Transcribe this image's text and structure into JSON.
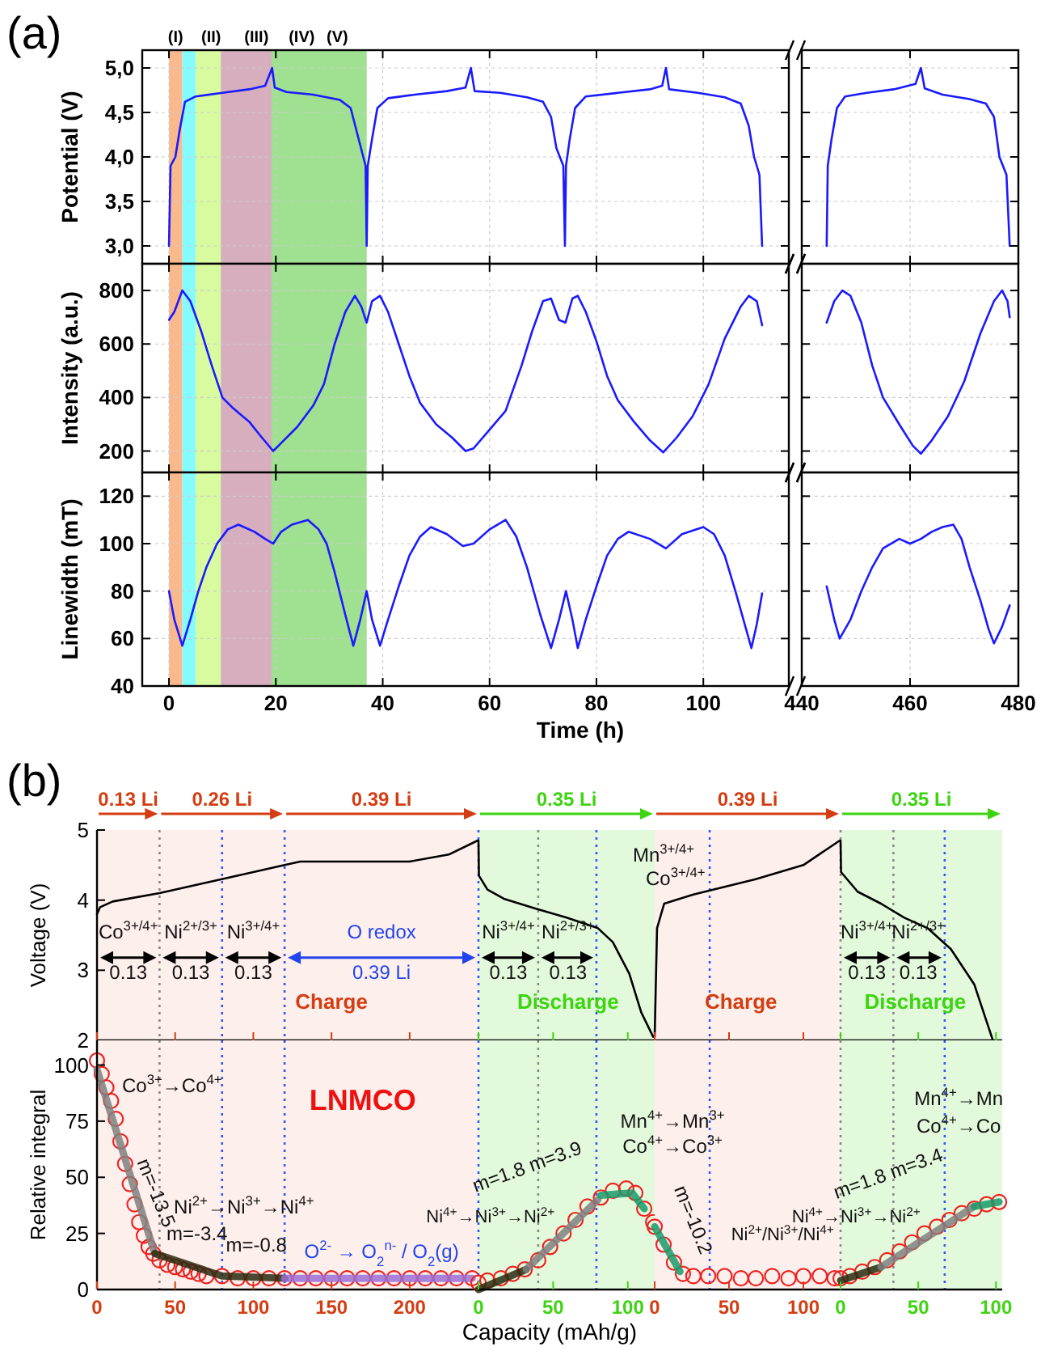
{
  "chart_data": [
    {
      "type": "line",
      "title": "(a)",
      "ylabel": "Potential (V)",
      "xlim": [
        -5,
        116
      ],
      "xticks": [
        0,
        20,
        40,
        60,
        80,
        100
      ],
      "ylim": [
        2.8,
        5.2
      ],
      "yticks": [
        {
          "value": 3,
          "label": "3,0"
        },
        {
          "value": 3.5,
          "label": "3,5"
        },
        {
          "value": 4,
          "label": "4,0"
        },
        {
          "value": 4.5,
          "label": "4,5"
        },
        {
          "value": 5,
          "label": "5,0"
        }
      ],
      "tick_labels": "y",
      "grid": true,
      "color": "#1a1aff",
      "bands": [
        {
          "axis": "x",
          "from": 0,
          "to": 2.5,
          "label": "(I)",
          "color": "#f9b98c"
        },
        {
          "axis": "x",
          "from": 2.5,
          "to": 5,
          "label": "(II)",
          "color": "#86fbfd"
        },
        {
          "axis": "x",
          "from": 5,
          "to": 9.7,
          "label": "(III)",
          "color": "#d9fba0"
        },
        {
          "axis": "x",
          "from": 9.7,
          "to": 19.2,
          "label": "(IV)",
          "color": "#d6aebe"
        },
        {
          "axis": "x",
          "from": 19.2,
          "to": 37,
          "label": "(V)",
          "color": "#9fe091"
        }
      ],
      "x": [
        0,
        0.3,
        1.2,
        2,
        3,
        5,
        10,
        15,
        18,
        19.3,
        19.8,
        22,
        27,
        32,
        34,
        35.5,
        36.8,
        37,
        37.2,
        38,
        39,
        41,
        46,
        52,
        55.5,
        56.5,
        57.2,
        62,
        67,
        70,
        71.5,
        72.5,
        73.8,
        74.1,
        74.3,
        75,
        76,
        78,
        84,
        90,
        92.3,
        93,
        93.6,
        99,
        104,
        107,
        108.5,
        109.5,
        110.5,
        111
      ],
      "values": [
        3.0,
        3.9,
        4.0,
        4.3,
        4.62,
        4.68,
        4.72,
        4.76,
        4.8,
        5.0,
        4.78,
        4.73,
        4.7,
        4.64,
        4.55,
        4.2,
        3.9,
        3.0,
        3.9,
        4.2,
        4.55,
        4.66,
        4.7,
        4.74,
        4.78,
        5.0,
        4.74,
        4.72,
        4.67,
        4.62,
        4.45,
        4.1,
        3.9,
        3.0,
        3.9,
        4.2,
        4.55,
        4.68,
        4.72,
        4.76,
        4.8,
        5.0,
        4.76,
        4.72,
        4.67,
        4.6,
        4.35,
        4.0,
        3.8,
        3.0
      ]
    },
    {
      "type": "line",
      "xlim": [
        440,
        480
      ],
      "xticks": [
        440,
        460,
        480
      ],
      "ylim": [
        2.8,
        5.2
      ],
      "yticks": [
        3,
        3.5,
        4,
        4.5,
        5
      ],
      "tick_labels": false,
      "grid": true,
      "color": "#1a1aff",
      "x": [
        444.6,
        444.8,
        445.5,
        446.5,
        448,
        452,
        457,
        461,
        462,
        462.7,
        466,
        471,
        474,
        475.5,
        476.5,
        477.8,
        478.4
      ],
      "values": [
        3.0,
        3.9,
        4.2,
        4.55,
        4.68,
        4.72,
        4.76,
        4.82,
        5.0,
        4.77,
        4.7,
        4.65,
        4.6,
        4.45,
        4.0,
        3.8,
        3.0
      ]
    },
    {
      "type": "line",
      "ylabel": "Intensity (a.u.)",
      "xlim": [
        -5,
        116
      ],
      "xticks": [
        0,
        20,
        40,
        60,
        80,
        100
      ],
      "ylim": [
        120,
        900
      ],
      "yticks": [
        200,
        400,
        600,
        800
      ],
      "tick_labels": "y",
      "grid": true,
      "color": "#1a1aff",
      "bands": [
        {
          "axis": "x",
          "from": 0,
          "to": 2.5,
          "color": "#f9b98c"
        },
        {
          "axis": "x",
          "from": 2.5,
          "to": 5,
          "color": "#86fbfd"
        },
        {
          "axis": "x",
          "from": 5,
          "to": 9.7,
          "color": "#d9fba0"
        },
        {
          "axis": "x",
          "from": 9.7,
          "to": 19.2,
          "color": "#d6aebe"
        },
        {
          "axis": "x",
          "from": 19.2,
          "to": 37,
          "color": "#9fe091"
        }
      ],
      "x": [
        0,
        1,
        2.5,
        4,
        6,
        8,
        10,
        12,
        15,
        17,
        19.5,
        21,
        24,
        27,
        29,
        31,
        33,
        34.8,
        36,
        37,
        38,
        39.5,
        41,
        43,
        45,
        47,
        50,
        53,
        55.5,
        57,
        60,
        63,
        66,
        68,
        70,
        71.5,
        73,
        74.2,
        75.5,
        76.5,
        78,
        80,
        82,
        84,
        87,
        90,
        92.5,
        95,
        98,
        101,
        104,
        107,
        108.5,
        110,
        111
      ],
      "values": [
        690,
        720,
        800,
        760,
        650,
        520,
        400,
        360,
        310,
        260,
        200,
        230,
        290,
        370,
        450,
        600,
        720,
        780,
        740,
        680,
        760,
        780,
        720,
        600,
        480,
        380,
        300,
        250,
        200,
        210,
        280,
        350,
        520,
        650,
        760,
        770,
        690,
        680,
        770,
        780,
        720,
        610,
        480,
        390,
        310,
        240,
        195,
        250,
        330,
        450,
        620,
        740,
        780,
        760,
        670
      ]
    },
    {
      "type": "line",
      "xlim": [
        440,
        480
      ],
      "xticks": [
        440,
        460,
        480
      ],
      "ylim": [
        120,
        900
      ],
      "yticks": [
        200,
        400,
        600,
        800
      ],
      "tick_labels": false,
      "grid": true,
      "color": "#1a1aff",
      "x": [
        444.6,
        446,
        447.5,
        449,
        451,
        453,
        455,
        458,
        460.5,
        462,
        464,
        467,
        470,
        473,
        475.5,
        477,
        478,
        478.4
      ],
      "values": [
        680,
        760,
        800,
        780,
        680,
        520,
        400,
        300,
        220,
        190,
        240,
        330,
        460,
        640,
        760,
        800,
        760,
        700
      ]
    },
    {
      "type": "line",
      "xlabel": "Time (h)",
      "ylabel": "Linewidth (mT)",
      "xlim": [
        -5,
        116
      ],
      "xticks": [
        0,
        20,
        40,
        60,
        80,
        100
      ],
      "ylim": [
        40,
        130
      ],
      "yticks": [
        40,
        60,
        80,
        100,
        120
      ],
      "grid": true,
      "color": "#1a1aff",
      "bands": [
        {
          "axis": "x",
          "from": 0,
          "to": 2.5,
          "color": "#f9b98c"
        },
        {
          "axis": "x",
          "from": 2.5,
          "to": 5,
          "color": "#86fbfd"
        },
        {
          "axis": "x",
          "from": 5,
          "to": 9.7,
          "color": "#d9fba0"
        },
        {
          "axis": "x",
          "from": 9.7,
          "to": 19.2,
          "color": "#d6aebe"
        },
        {
          "axis": "x",
          "from": 19.2,
          "to": 37,
          "color": "#9fe091"
        }
      ],
      "x": [
        0,
        1,
        2.5,
        4,
        5.5,
        7,
        9,
        11,
        13,
        16,
        18,
        19.5,
        21,
        23,
        26,
        28,
        29.5,
        31,
        33,
        34.5,
        35.8,
        37,
        38,
        39.5,
        41,
        43,
        45,
        47,
        49,
        52,
        55,
        57,
        60,
        63,
        65,
        67,
        69.5,
        71.5,
        73,
        74.3,
        75.5,
        76.5,
        78,
        80,
        82,
        84,
        86,
        90,
        93,
        96,
        100,
        102,
        104,
        106,
        108,
        109,
        110,
        111
      ],
      "values": [
        80,
        68,
        57,
        68,
        80,
        90,
        100,
        106,
        108,
        105,
        102,
        100,
        105,
        108,
        110,
        106,
        100,
        88,
        70,
        57,
        68,
        80,
        68,
        57,
        68,
        82,
        95,
        103,
        107,
        104,
        99,
        100,
        106,
        110,
        103,
        90,
        70,
        56,
        68,
        80,
        68,
        56,
        68,
        82,
        95,
        102,
        105,
        102,
        98,
        104,
        107,
        104,
        95,
        80,
        64,
        56,
        66,
        79
      ]
    },
    {
      "type": "line",
      "xlim": [
        440,
        480
      ],
      "xticks": [
        440,
        460,
        480
      ],
      "ylim": [
        40,
        130
      ],
      "yticks": [
        40,
        60,
        80,
        100,
        120
      ],
      "tick_labels": "x",
      "grid": true,
      "color": "#1a1aff",
      "x": [
        444.6,
        446,
        447,
        449,
        451,
        453,
        455,
        458,
        460,
        462,
        464,
        466,
        468,
        469.5,
        471,
        473,
        474.5,
        475.5,
        477,
        478.4
      ],
      "values": [
        82,
        68,
        60,
        68,
        80,
        90,
        98,
        102,
        100,
        102,
        105,
        107,
        108,
        102,
        90,
        76,
        64,
        58,
        65,
        74
      ]
    },
    {
      "type": "line",
      "title": "(b)",
      "ylabel": "Voltage (V)",
      "xlim": [
        0,
        244
      ],
      "xticks": [
        0,
        50,
        100,
        150,
        200
      ],
      "ylim": [
        2,
        5
      ],
      "yticks": [
        2,
        3,
        4,
        5
      ],
      "tick_labels": "y",
      "color": "#000000",
      "bands": [
        {
          "axis": "x",
          "from": 0,
          "to": 40,
          "label": "0.13 Li",
          "color": "#fdefeb"
        },
        {
          "axis": "x",
          "from": 40,
          "to": 120,
          "label": "0.26 Li",
          "color": "#fdefeb"
        },
        {
          "axis": "x",
          "from": 120,
          "to": 244,
          "label": "0.39 Li",
          "color": "#fdefeb"
        }
      ],
      "ref_lines": [
        {
          "axis": "x",
          "value": 40,
          "color": "#888888",
          "line_style": "dotted"
        },
        {
          "axis": "x",
          "value": 80,
          "color": "#3355ff",
          "line_style": "dotted"
        },
        {
          "axis": "x",
          "value": 120,
          "color": "#3355ff",
          "line_style": "dotted"
        }
      ],
      "annotations": [
        "Co$^{3+/4+}$",
        "0.13",
        "Ni$^{2+/3+}$",
        "0.13",
        "Ni$^{3+/4+}$",
        "0.13",
        "O redox",
        "0.39 Li",
        "Charge"
      ],
      "x": [
        0,
        2,
        10,
        40,
        70,
        100,
        120,
        130,
        200,
        225,
        243.5
      ],
      "values": [
        3.8,
        3.9,
        3.98,
        4.1,
        4.25,
        4.4,
        4.5,
        4.55,
        4.55,
        4.65,
        4.85
      ]
    },
    {
      "type": "line",
      "xlim": [
        0,
        118
      ],
      "xticks": [
        0,
        50,
        100
      ],
      "ylim": [
        2,
        5
      ],
      "tick_labels": false,
      "color": "#000000",
      "bands": [
        {
          "axis": "x",
          "from": 0,
          "to": 118,
          "label": "0.35 Li",
          "color": "#e2fadb"
        }
      ],
      "ref_lines": [
        {
          "axis": "x",
          "value": 0,
          "color": "#3355ff",
          "line_style": "dotted"
        },
        {
          "axis": "x",
          "value": 40,
          "color": "#888888",
          "line_style": "dotted"
        },
        {
          "axis": "x",
          "value": 79,
          "color": "#3355ff",
          "line_style": "dotted"
        }
      ],
      "annotations": [
        "Ni$^{3+/4+}$",
        "0.13",
        "Ni$^{2+/3+}$",
        "0.13",
        "Discharge"
      ],
      "x": [
        0,
        0.3,
        6,
        17,
        38,
        59,
        80,
        90,
        101,
        109,
        117
      ],
      "values": [
        4.85,
        4.35,
        4.15,
        4.02,
        3.88,
        3.75,
        3.6,
        3.4,
        2.95,
        2.4,
        2.05
      ]
    },
    {
      "type": "line",
      "xlim": [
        0,
        125
      ],
      "xticks": [
        0,
        50,
        100
      ],
      "ylim": [
        2,
        5
      ],
      "tick_labels": false,
      "color": "#000000",
      "bands": [
        {
          "axis": "x",
          "from": 0,
          "to": 125,
          "label": "0.39 Li",
          "color": "#fdefeb"
        }
      ],
      "ref_lines": [
        {
          "axis": "x",
          "value": 37,
          "color": "#3355ff",
          "line_style": "dotted"
        }
      ],
      "annotations": [
        "Mn$^{3+/4+}$",
        "Co$^{3+/4+}$",
        "Charge"
      ],
      "x": [
        0,
        1.6,
        6.4,
        26,
        68,
        100,
        124.5
      ],
      "values": [
        2.05,
        3.6,
        3.95,
        4.08,
        4.3,
        4.5,
        4.85
      ]
    },
    {
      "type": "line",
      "xlim": [
        0,
        104
      ],
      "xticks": [
        0,
        50,
        100
      ],
      "ylim": [
        2,
        5
      ],
      "tick_labels": false,
      "color": "#000000",
      "bands": [
        {
          "axis": "x",
          "from": 0,
          "to": 104,
          "label": "0.35 Li",
          "color": "#e2fadb"
        }
      ],
      "ref_lines": [
        {
          "axis": "x",
          "value": 0,
          "color": "#888888",
          "line_style": "dotted"
        },
        {
          "axis": "x",
          "value": 34,
          "color": "#888888",
          "line_style": "dotted"
        },
        {
          "axis": "x",
          "value": 67,
          "color": "#3355ff",
          "line_style": "dotted"
        }
      ],
      "annotations": [
        "Ni$^{3+/4+}$",
        "0.13",
        "Ni$^{2+/3+}$",
        "0.13",
        "Discharge"
      ],
      "x": [
        0,
        0.3,
        11,
        26,
        41,
        56,
        71,
        86,
        98
      ],
      "values": [
        4.85,
        4.4,
        4.12,
        3.95,
        3.75,
        3.6,
        3.3,
        2.8,
        2.0
      ]
    },
    {
      "type": "scatter",
      "xlabel": "Capacity (mAh/g)",
      "ylabel": "Relative integral",
      "xlim": [
        0,
        244
      ],
      "xticks": [
        0,
        50,
        100,
        150,
        200
      ],
      "ylim": [
        0,
        111
      ],
      "yticks": [
        0,
        25,
        50,
        75,
        100
      ],
      "bands": [
        {
          "axis": "x",
          "from": 0,
          "to": 244,
          "color": "#fdefeb"
        }
      ],
      "ref_lines": [
        {
          "axis": "x",
          "value": 40,
          "color": "#888888",
          "line_style": "dotted"
        },
        {
          "axis": "x",
          "value": 80,
          "color": "#3355ff",
          "line_style": "dotted"
        },
        {
          "axis": "x",
          "value": 120,
          "color": "#3355ff",
          "line_style": "dotted"
        }
      ],
      "annotations": [
        "LNMCO",
        "Co$^{3+}$→Co$^{4+}$",
        "m=-13.5",
        "Ni$^{2+}$→Ni$^{3+}$→Ni$^{4+}$",
        "m=-3.4",
        "m=-0.8",
        "O$^{2-}$ → O$_{2}$$^{n-}$ / O$_{2}$(g)"
      ],
      "series": [
        {
          "type": "scatter",
          "marker": "circle",
          "color": "#ee2222",
          "x": [
            0,
            3,
            6,
            9,
            12,
            15,
            18,
            21,
            24,
            27,
            30,
            33,
            36,
            40,
            45,
            50,
            55,
            60,
            65,
            70,
            80,
            90,
            100,
            110,
            120,
            130,
            140,
            150,
            160,
            170,
            180,
            190,
            200,
            210,
            220,
            230,
            240
          ],
          "values": [
            102,
            96,
            90,
            84,
            76,
            66,
            56,
            47,
            38,
            30,
            24,
            19,
            16,
            13,
            11,
            10,
            9,
            8,
            7,
            6,
            6,
            5,
            5,
            5,
            5,
            5,
            5,
            5,
            5,
            5,
            5,
            5,
            5,
            5,
            5,
            5,
            5
          ]
        },
        {
          "type": "line",
          "color": "#808080",
          "x": [
            0,
            37
          ],
          "values": [
            98,
            16
          ]
        },
        {
          "type": "line",
          "color": "#2a2a10",
          "x": [
            37,
            80,
            120
          ],
          "values": [
            16,
            6,
            5
          ]
        },
        {
          "type": "line",
          "color": "#9b6fd6",
          "x": [
            120,
            240
          ],
          "values": [
            5,
            5
          ]
        }
      ]
    },
    {
      "type": "scatter",
      "xlim": [
        0,
        118
      ],
      "xticks": [
        0,
        50,
        100
      ],
      "ylim": [
        0,
        111
      ],
      "tick_labels": "x",
      "bands": [
        {
          "axis": "x",
          "from": 0,
          "to": 118,
          "color": "#e2fadb"
        }
      ],
      "ref_lines": [
        {
          "axis": "x",
          "value": 0,
          "color": "#3355ff",
          "line_style": "dotted"
        },
        {
          "axis": "x",
          "value": 40,
          "color": "#888888",
          "line_style": "dotted"
        },
        {
          "axis": "x",
          "value": 79,
          "color": "#3355ff",
          "line_style": "dotted"
        }
      ],
      "annotations": [
        "Ni$^{4+}$→Ni$^{3+}$→Ni$^{2+}$",
        "m=1.8 m=3.9"
      ],
      "series": [
        {
          "type": "scatter",
          "marker": "circle",
          "color": "#ee2222",
          "x": [
            0,
            6,
            15,
            23,
            31,
            40,
            48,
            57,
            65,
            73,
            82,
            90,
            99,
            105,
            111,
            117
          ],
          "values": [
            3,
            4,
            5,
            7,
            9,
            13,
            19,
            25,
            31,
            37,
            41,
            44,
            45,
            43,
            36,
            30
          ]
        },
        {
          "type": "line",
          "color": "#2a2a10",
          "x": [
            0,
            32
          ],
          "values": [
            0,
            9
          ]
        },
        {
          "type": "line",
          "color": "#808080",
          "x": [
            32,
            80
          ],
          "values": [
            9,
            40
          ]
        },
        {
          "type": "line",
          "color": "#1a9a6a",
          "x": [
            82,
            103,
            111
          ],
          "values": [
            42,
            43,
            36
          ]
        }
      ]
    },
    {
      "type": "scatter",
      "xlim": [
        0,
        125
      ],
      "xticks": [
        0,
        50,
        100
      ],
      "ylim": [
        0,
        111
      ],
      "tick_labels": "x",
      "bands": [
        {
          "axis": "x",
          "from": 0,
          "to": 125,
          "color": "#fdefeb"
        }
      ],
      "ref_lines": [
        {
          "axis": "x",
          "value": 37,
          "color": "#3355ff",
          "line_style": "dotted"
        }
      ],
      "annotations": [
        "Mn$^{4+}$→Mn$^{3+}$",
        "Co$^{4+}$→Co$^{3+}$",
        "m=-10.2",
        "Ni$^{2+}$/Ni$^{3+}$/Ni$^{4+}$"
      ],
      "series": [
        {
          "type": "scatter",
          "marker": "circle",
          "color": "#ee2222",
          "x": [
            0,
            6,
            13,
            19,
            26,
            36,
            47,
            58,
            68,
            79,
            90,
            100,
            111,
            121
          ],
          "values": [
            28,
            20,
            12,
            7,
            6,
            6,
            6,
            5,
            5,
            6,
            5,
            6,
            6,
            5
          ]
        },
        {
          "type": "line",
          "color": "#1a9a6a",
          "x": [
            0,
            17
          ],
          "values": [
            28,
            8
          ]
        }
      ]
    },
    {
      "type": "scatter",
      "xlim": [
        0,
        104
      ],
      "xticks": [
        0,
        50,
        100
      ],
      "ylim": [
        0,
        111
      ],
      "tick_labels": "x",
      "bands": [
        {
          "axis": "x",
          "from": 0,
          "to": 104,
          "color": "#e2fadb"
        }
      ],
      "ref_lines": [
        {
          "axis": "x",
          "value": 0,
          "color": "#888888",
          "line_style": "dotted"
        },
        {
          "axis": "x",
          "value": 34,
          "color": "#888888",
          "line_style": "dotted"
        },
        {
          "axis": "x",
          "value": 67,
          "color": "#3355ff",
          "line_style": "dotted"
        }
      ],
      "annotations": [
        "Ni$^{4+}$→Ni$^{3+}$→Ni$^{2+}$",
        "m=1.8 m=3.4",
        "Mn$^{4+}$→Mn",
        "Co$^{4+}$→Co"
      ],
      "series": [
        {
          "type": "scatter",
          "marker": "circle",
          "color": "#ee2222",
          "x": [
            0,
            6,
            14,
            22,
            30,
            38,
            46,
            54,
            62,
            70,
            78,
            86,
            94,
            102
          ],
          "values": [
            5,
            6,
            8,
            10,
            13,
            17,
            21,
            25,
            28,
            31,
            34,
            36,
            38,
            39
          ]
        },
        {
          "type": "line",
          "color": "#2a2a10",
          "x": [
            0,
            26
          ],
          "values": [
            4,
            10
          ]
        },
        {
          "type": "line",
          "color": "#808080",
          "x": [
            26,
            86
          ],
          "values": [
            10,
            37
          ]
        },
        {
          "type": "line",
          "color": "#1a9a6a",
          "x": [
            86,
            102
          ],
          "values": [
            37,
            39
          ]
        }
      ]
    }
  ]
}
